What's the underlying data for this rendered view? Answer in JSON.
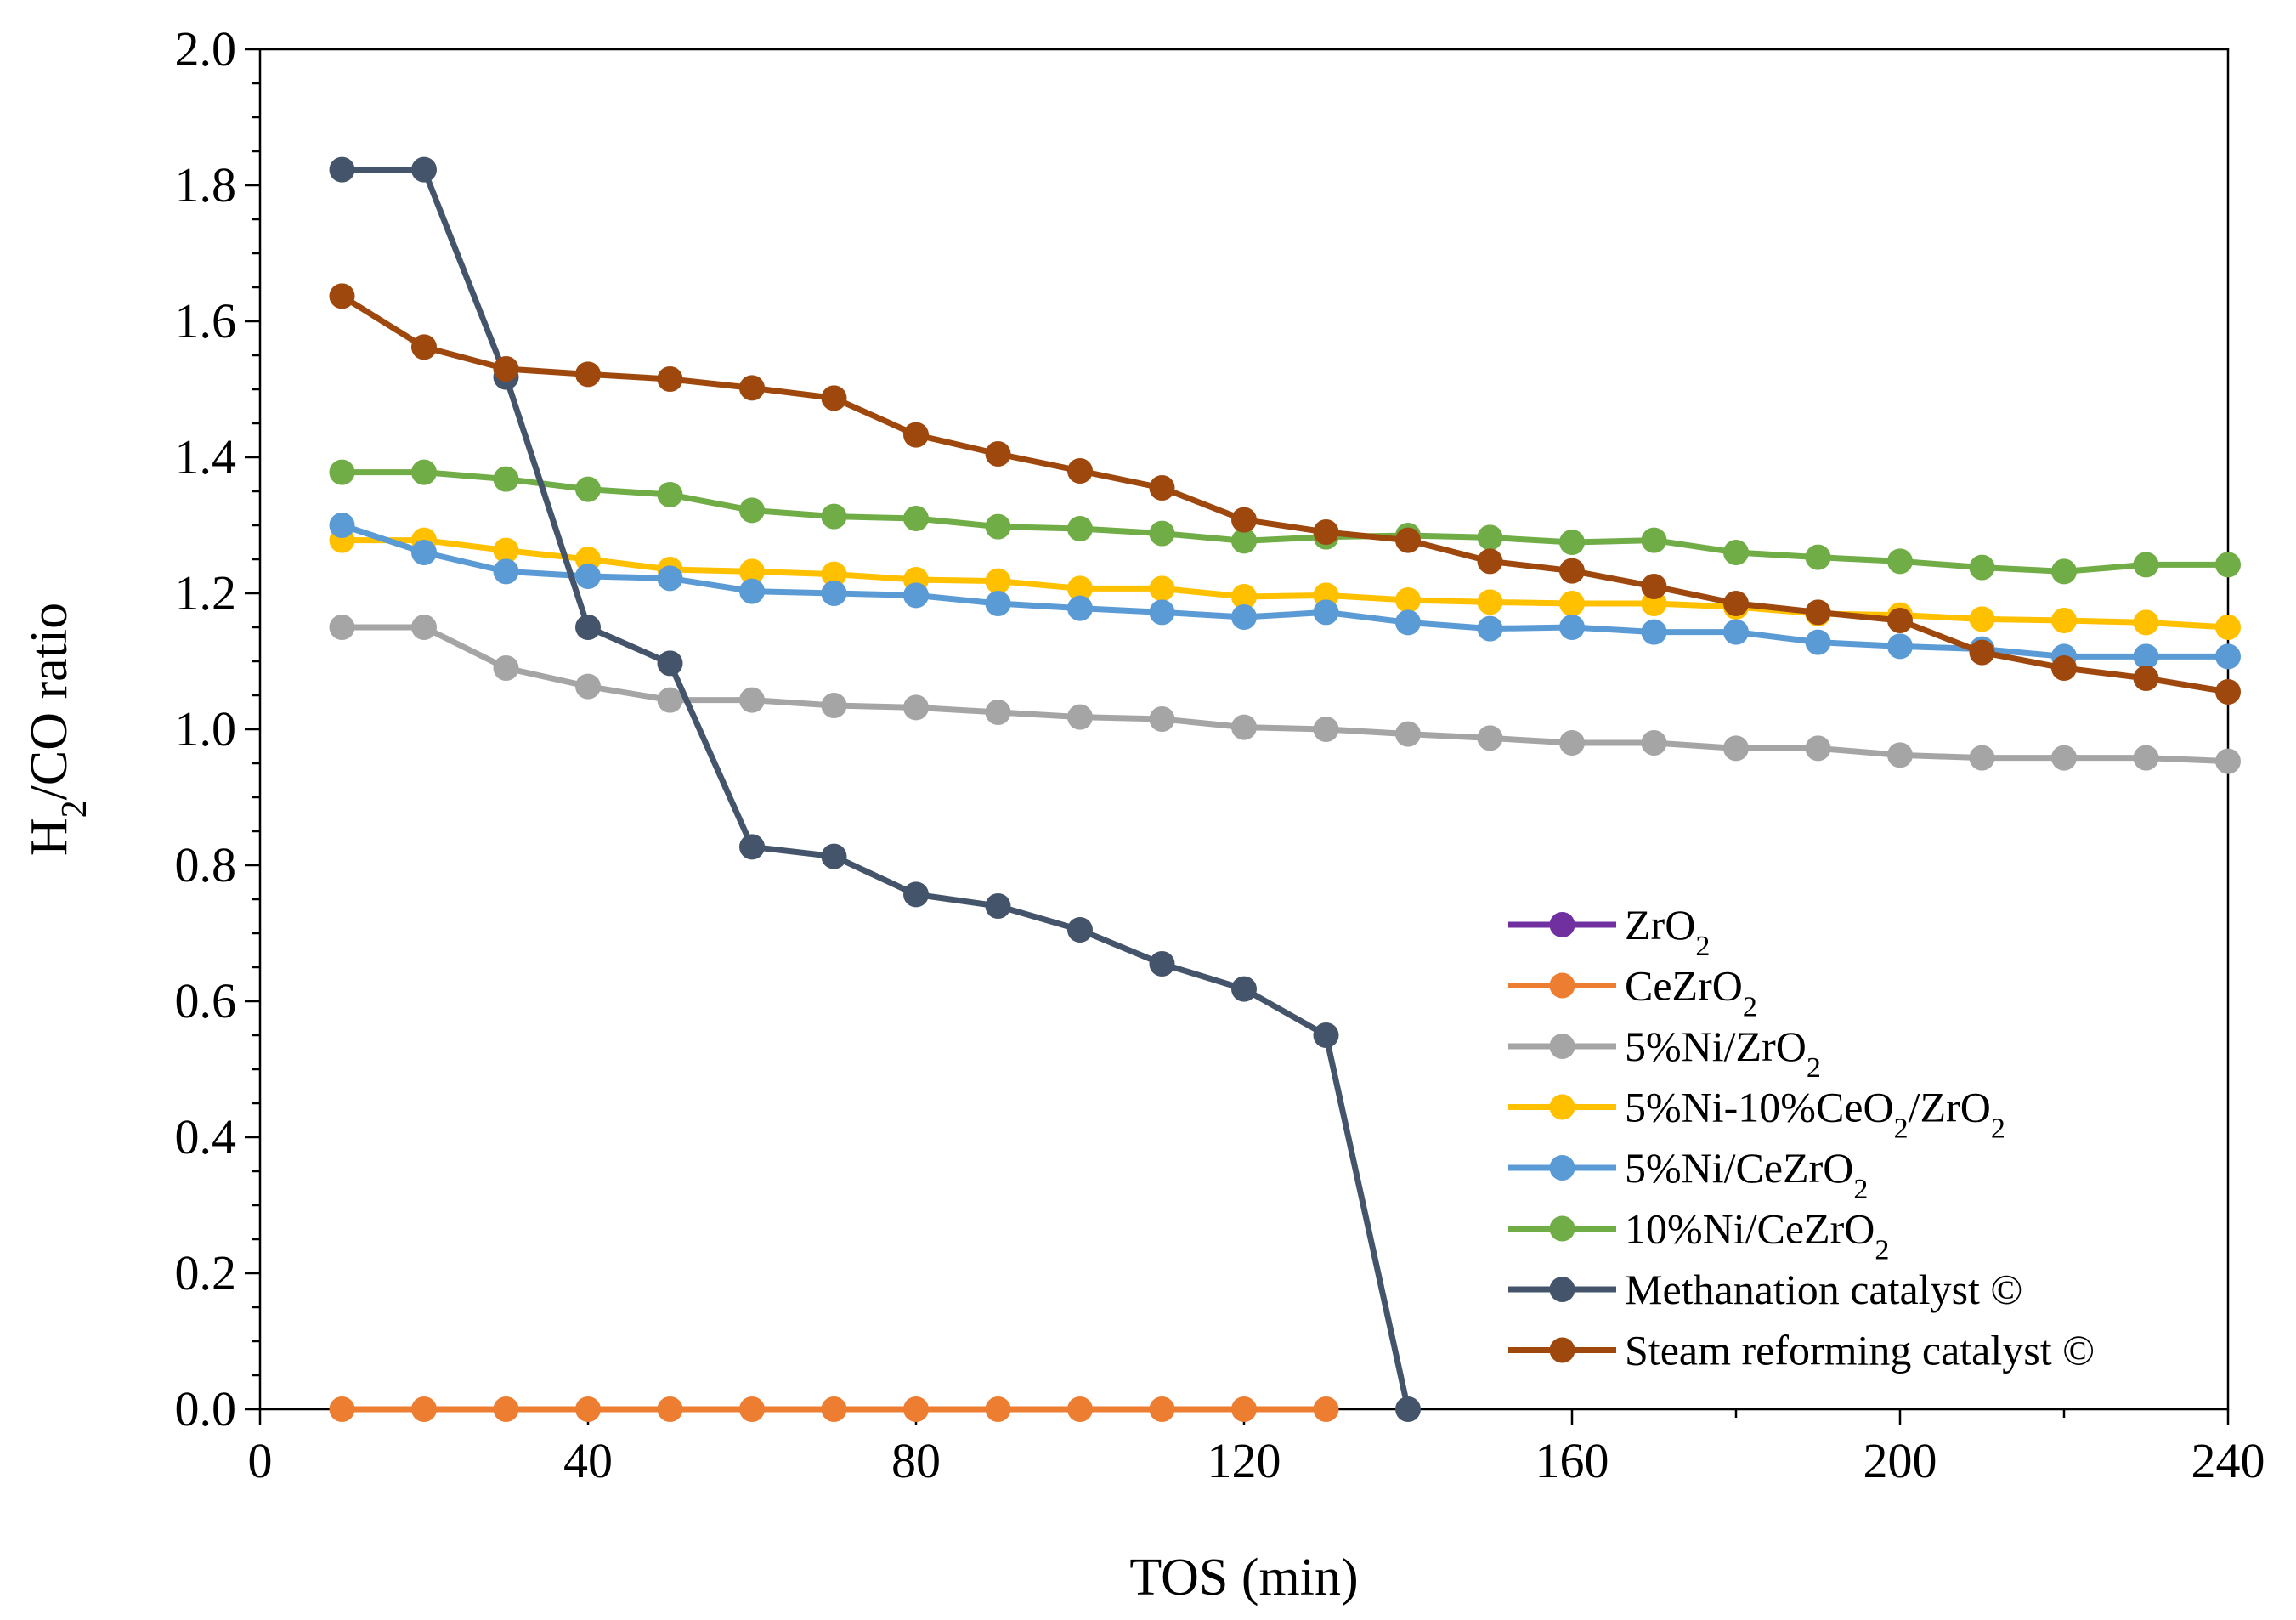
{
  "chart_data": {
    "type": "line",
    "title": "",
    "xlabel": "TOS (min)",
    "ylabel_parts": {
      "main": "H",
      "sub": "2",
      "rest": "/CO ratio"
    },
    "xlim": [
      0,
      240
    ],
    "ylim": [
      0,
      2.0
    ],
    "x_ticks": [
      0,
      40,
      80,
      120,
      160,
      200,
      240
    ],
    "x_tick_labels": [
      "0",
      "40",
      "80",
      "120",
      "160",
      "200",
      "240"
    ],
    "y_ticks": [
      0,
      0.2,
      0.4,
      0.6,
      0.8,
      1.0,
      1.2,
      1.4,
      1.6,
      1.8,
      2.0
    ],
    "y_tick_labels": [
      "0.0",
      "0.2",
      "0.4",
      "0.6",
      "0.8",
      "1.0",
      "1.2",
      "1.4",
      "1.6",
      "1.8",
      "2.0"
    ],
    "grid": false,
    "legend_position": "bottom-right",
    "series": [
      {
        "name": "ZrO2",
        "label_parts": [
          [
            "ZrO",
            ""
          ],
          [
            "2",
            "sub"
          ]
        ],
        "color": "#7030A0",
        "x": [],
        "y": []
      },
      {
        "name": "CeZrO2",
        "label_parts": [
          [
            "CeZrO",
            ""
          ],
          [
            "2",
            "sub"
          ]
        ],
        "color": "#ED7D31",
        "x": [
          10,
          20,
          30,
          40,
          50,
          60,
          70,
          80,
          90,
          100,
          110,
          120,
          130
        ],
        "y": [
          0,
          0,
          0,
          0,
          0,
          0,
          0,
          0,
          0,
          0,
          0,
          0,
          0
        ]
      },
      {
        "name": "5%Ni/ZrO2",
        "label_parts": [
          [
            "5%Ni/ZrO",
            ""
          ],
          [
            "2",
            "sub"
          ]
        ],
        "color": "#A5A5A5",
        "x": [
          10,
          20,
          30,
          40,
          50,
          60,
          70,
          80,
          90,
          100,
          110,
          120,
          130,
          140,
          150,
          160,
          170,
          180,
          190,
          200,
          210,
          220,
          230,
          240
        ],
        "y": [
          1.15,
          1.15,
          1.09,
          1.063,
          1.043,
          1.043,
          1.035,
          1.032,
          1.025,
          1.018,
          1.015,
          1.003,
          1.0,
          0.993,
          0.987,
          0.98,
          0.98,
          0.972,
          0.972,
          0.962,
          0.958,
          0.958,
          0.958,
          0.953
        ]
      },
      {
        "name": "5%Ni-10%CeO2/ZrO2",
        "label_parts": [
          [
            "5%Ni-10%CeO",
            ""
          ],
          [
            "2",
            "sub"
          ],
          [
            "/ZrO",
            ""
          ],
          [
            "2",
            "sub"
          ]
        ],
        "color": "#FFC000",
        "x": [
          10,
          20,
          30,
          40,
          50,
          60,
          70,
          80,
          90,
          100,
          110,
          120,
          130,
          140,
          150,
          160,
          170,
          180,
          190,
          200,
          210,
          220,
          230,
          240
        ],
        "y": [
          1.278,
          1.278,
          1.263,
          1.25,
          1.235,
          1.232,
          1.228,
          1.22,
          1.218,
          1.207,
          1.207,
          1.195,
          1.197,
          1.19,
          1.187,
          1.185,
          1.185,
          1.18,
          1.17,
          1.168,
          1.162,
          1.16,
          1.157,
          1.15
        ]
      },
      {
        "name": "5%Ni/CeZrO2",
        "label_parts": [
          [
            "5%Ni/CeZrO",
            ""
          ],
          [
            "2",
            "sub"
          ]
        ],
        "color": "#5B9BD5",
        "x": [
          10,
          20,
          30,
          40,
          50,
          60,
          70,
          80,
          90,
          100,
          110,
          120,
          130,
          140,
          150,
          160,
          170,
          180,
          190,
          200,
          210,
          220,
          230,
          240
        ],
        "y": [
          1.3,
          1.26,
          1.232,
          1.225,
          1.222,
          1.203,
          1.2,
          1.197,
          1.185,
          1.178,
          1.172,
          1.165,
          1.172,
          1.157,
          1.148,
          1.15,
          1.143,
          1.143,
          1.128,
          1.122,
          1.118,
          1.107,
          1.107,
          1.107
        ]
      },
      {
        "name": "10%Ni/CeZrO2",
        "label_parts": [
          [
            "10%Ni/CeZrO",
            ""
          ],
          [
            "2",
            "sub"
          ]
        ],
        "color": "#70AD47",
        "x": [
          10,
          20,
          30,
          40,
          50,
          60,
          70,
          80,
          90,
          100,
          110,
          120,
          130,
          140,
          150,
          160,
          170,
          180,
          190,
          200,
          210,
          220,
          230,
          240
        ],
        "y": [
          1.378,
          1.378,
          1.368,
          1.353,
          1.345,
          1.322,
          1.313,
          1.31,
          1.298,
          1.295,
          1.288,
          1.277,
          1.283,
          1.285,
          1.282,
          1.275,
          1.278,
          1.26,
          1.253,
          1.247,
          1.238,
          1.232,
          1.242,
          1.242
        ]
      },
      {
        "name": "Methanation catalyst ©",
        "label_parts": [
          [
            "Methanation catalyst ©",
            ""
          ]
        ],
        "color": "#44546A",
        "x": [
          10,
          20,
          30,
          40,
          50,
          60,
          70,
          80,
          90,
          100,
          110,
          120,
          130,
          140
        ],
        "y": [
          1.823,
          1.823,
          1.518,
          1.15,
          1.097,
          0.827,
          0.813,
          0.757,
          0.74,
          0.705,
          0.655,
          0.618,
          0.55,
          0.0
        ]
      },
      {
        "name": "Steam reforming catalyst ©",
        "label_parts": [
          [
            "Steam reforming catalyst ©",
            ""
          ]
        ],
        "color": "#9E480E",
        "x": [
          10,
          20,
          30,
          40,
          50,
          60,
          70,
          80,
          90,
          100,
          110,
          120,
          130,
          140,
          150,
          160,
          170,
          180,
          190,
          200,
          210,
          220,
          230,
          240
        ],
        "y": [
          1.637,
          1.562,
          1.53,
          1.522,
          1.515,
          1.502,
          1.487,
          1.433,
          1.405,
          1.38,
          1.355,
          1.308,
          1.29,
          1.278,
          1.247,
          1.233,
          1.21,
          1.185,
          1.172,
          1.16,
          1.113,
          1.09,
          1.075,
          1.055
        ]
      }
    ]
  }
}
